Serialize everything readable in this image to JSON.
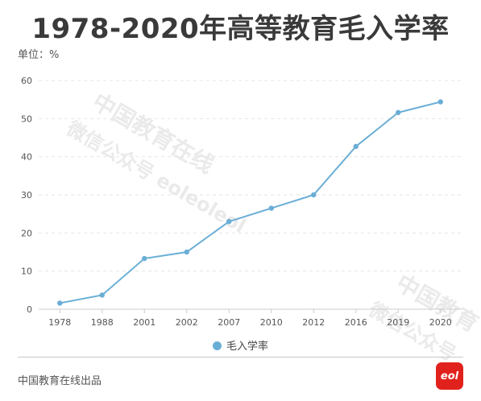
{
  "title": "1978-2020年高等教育毛入学率",
  "unit_label": "单位：%",
  "footer": "中国教育在线出品",
  "logo_text": "eol",
  "watermarks": [
    "中国教育在线",
    "微信公众号 eoleoleol",
    "中国教育",
    "微信公众号"
  ],
  "colors": {
    "line": "#6aaed6",
    "axis": "#cccccc",
    "grid": "#e6e6e6",
    "logo": "#e1221c"
  },
  "chart_data": {
    "type": "line",
    "categories": [
      "1978",
      "1988",
      "2001",
      "2002",
      "2007",
      "2010",
      "2012",
      "2016",
      "2019",
      "2020"
    ],
    "series": [
      {
        "name": "毛入学率",
        "values": [
          1.6,
          3.7,
          13.3,
          15.0,
          23.0,
          26.5,
          30.0,
          42.7,
          51.6,
          54.4
        ]
      }
    ],
    "y_ticks": [
      0,
      10,
      20,
      30,
      40,
      50,
      60
    ],
    "ylim": [
      0,
      60
    ],
    "grid": true,
    "legend_position": "bottom-center"
  }
}
